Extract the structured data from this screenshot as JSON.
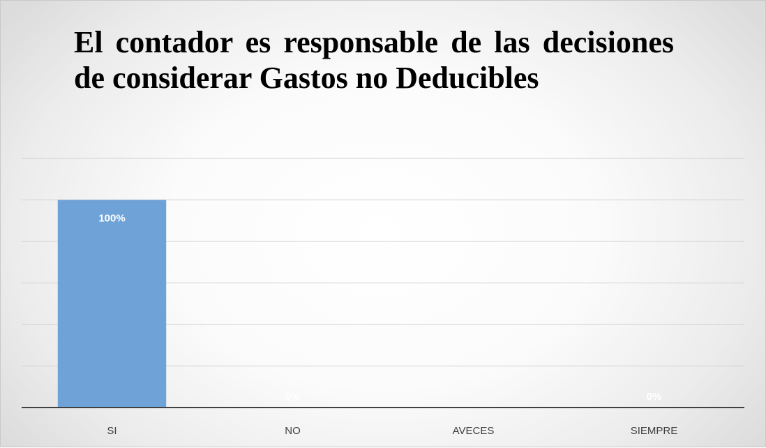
{
  "chart_data": {
    "type": "bar",
    "title": "El contador es responsable de las decisiones de considerar Gastos no Deducibles",
    "categories": [
      "SI",
      "NO",
      "AVECES",
      "SIEMPRE"
    ],
    "values": [
      100,
      0,
      0,
      0
    ],
    "data_labels": [
      "100%",
      "0%",
      "",
      "0%"
    ],
    "ylim": [
      0,
      120
    ],
    "grid": true,
    "legend": "none",
    "bar_color": "#6fa3d8",
    "axis_color": "#404040",
    "grid_color": "#d0d0d0"
  }
}
